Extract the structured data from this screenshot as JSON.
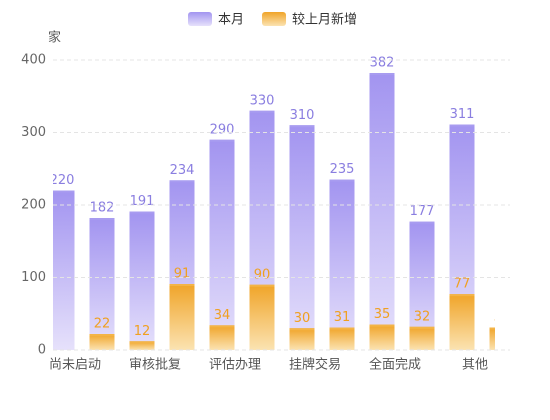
{
  "chart_data": {
    "type": "bar",
    "y_label": "家",
    "categories": [
      "尚未启动",
      null,
      "审核批复",
      null,
      "评估办理",
      null,
      "挂牌交易",
      null,
      "全面完成",
      null,
      "其他",
      null
    ],
    "series": [
      {
        "name": "本月",
        "color": "#a89cf0",
        "values": [
          220,
          182,
          191,
          234,
          290,
          330,
          310,
          235,
          382,
          177,
          311,
          null
        ]
      },
      {
        "name": "较上月新增",
        "color": "#f3b447",
        "values": [
          null,
          22,
          12,
          91,
          34,
          90,
          30,
          31,
          35,
          32,
          77,
          31
        ]
      }
    ],
    "ylim": [
      0,
      400
    ],
    "yticks": [
      0,
      100,
      200,
      300,
      400
    ],
    "grid": true,
    "legend": "top"
  }
}
